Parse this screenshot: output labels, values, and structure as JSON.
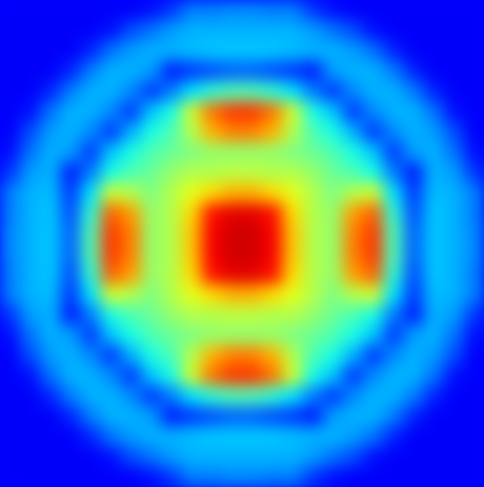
{
  "chart_data": {
    "type": "heatmap",
    "zlim": [
      0,
      100
    ],
    "tick_labels": false,
    "cells": [
      [
        12,
        12,
        12,
        12,
        12,
        12,
        12,
        14,
        18,
        25,
        25,
        26,
        26,
        25,
        25,
        18,
        14,
        12,
        12,
        12,
        12,
        12,
        12,
        12
      ],
      [
        12,
        12,
        12,
        12,
        12,
        14,
        20,
        24,
        28,
        30,
        30,
        30,
        30,
        30,
        30,
        28,
        24,
        20,
        14,
        12,
        12,
        12,
        12,
        12
      ],
      [
        12,
        12,
        12,
        12,
        16,
        24,
        28,
        30,
        30,
        31,
        32,
        32,
        32,
        32,
        31,
        30,
        30,
        28,
        24,
        16,
        12,
        12,
        12,
        12
      ],
      [
        12,
        12,
        12,
        16,
        25,
        30,
        30,
        28,
        15,
        18,
        20,
        22,
        22,
        20,
        18,
        15,
        28,
        30,
        30,
        25,
        16,
        12,
        12,
        12
      ],
      [
        12,
        12,
        16,
        25,
        30,
        30,
        26,
        18,
        25,
        35,
        42,
        45,
        45,
        42,
        35,
        25,
        18,
        26,
        30,
        30,
        25,
        16,
        12,
        12
      ],
      [
        12,
        14,
        24,
        30,
        30,
        26,
        18,
        32,
        40,
        58,
        76,
        82,
        82,
        76,
        58,
        40,
        32,
        18,
        26,
        30,
        30,
        24,
        14,
        12
      ],
      [
        12,
        20,
        28,
        30,
        26,
        18,
        30,
        40,
        45,
        55,
        70,
        75,
        75,
        70,
        55,
        45,
        40,
        30,
        18,
        26,
        30,
        28,
        20,
        12
      ],
      [
        14,
        24,
        30,
        28,
        18,
        32,
        40,
        45,
        48,
        50,
        52,
        52,
        52,
        52,
        50,
        48,
        45,
        40,
        32,
        18,
        28,
        30,
        24,
        14
      ],
      [
        18,
        28,
        30,
        15,
        25,
        40,
        45,
        48,
        52,
        55,
        55,
        56,
        56,
        55,
        55,
        52,
        48,
        45,
        40,
        25,
        15,
        30,
        28,
        18
      ],
      [
        25,
        30,
        31,
        18,
        35,
        58,
        55,
        50,
        55,
        60,
        66,
        70,
        70,
        66,
        60,
        55,
        50,
        55,
        58,
        35,
        18,
        31,
        30,
        25
      ],
      [
        25,
        30,
        32,
        20,
        42,
        78,
        72,
        52,
        55,
        66,
        86,
        90,
        90,
        86,
        66,
        55,
        52,
        72,
        78,
        42,
        20,
        32,
        30,
        25
      ],
      [
        26,
        30,
        32,
        22,
        45,
        82,
        75,
        52,
        55,
        68,
        88,
        92,
        92,
        88,
        68,
        55,
        52,
        75,
        82,
        45,
        22,
        32,
        30,
        26
      ],
      [
        26,
        30,
        32,
        22,
        45,
        82,
        75,
        52,
        55,
        68,
        88,
        92,
        92,
        88,
        68,
        55,
        52,
        75,
        82,
        45,
        22,
        32,
        30,
        26
      ],
      [
        25,
        30,
        32,
        20,
        42,
        78,
        72,
        52,
        55,
        66,
        86,
        90,
        90,
        86,
        66,
        55,
        52,
        72,
        78,
        42,
        20,
        32,
        30,
        25
      ],
      [
        25,
        30,
        31,
        18,
        35,
        58,
        55,
        50,
        55,
        60,
        66,
        70,
        70,
        66,
        60,
        55,
        50,
        55,
        58,
        35,
        18,
        31,
        30,
        25
      ],
      [
        18,
        28,
        30,
        15,
        25,
        40,
        45,
        48,
        52,
        55,
        55,
        56,
        56,
        55,
        55,
        52,
        48,
        45,
        40,
        25,
        15,
        30,
        28,
        18
      ],
      [
        14,
        24,
        30,
        28,
        18,
        32,
        40,
        45,
        48,
        50,
        52,
        52,
        52,
        52,
        50,
        48,
        45,
        40,
        32,
        18,
        28,
        30,
        24,
        14
      ],
      [
        12,
        20,
        28,
        30,
        26,
        18,
        30,
        40,
        45,
        55,
        70,
        75,
        75,
        70,
        55,
        45,
        40,
        30,
        18,
        26,
        30,
        28,
        20,
        12
      ],
      [
        12,
        14,
        24,
        30,
        30,
        26,
        18,
        32,
        40,
        58,
        76,
        82,
        82,
        76,
        58,
        40,
        32,
        18,
        26,
        30,
        30,
        24,
        14,
        12
      ],
      [
        12,
        12,
        16,
        25,
        30,
        30,
        26,
        18,
        25,
        35,
        42,
        45,
        45,
        42,
        35,
        25,
        18,
        26,
        30,
        30,
        25,
        16,
        12,
        12
      ],
      [
        12,
        12,
        12,
        16,
        25,
        30,
        30,
        28,
        15,
        18,
        20,
        22,
        22,
        20,
        18,
        15,
        28,
        30,
        30,
        25,
        16,
        12,
        12,
        12
      ],
      [
        12,
        12,
        12,
        12,
        16,
        24,
        28,
        30,
        30,
        31,
        32,
        32,
        32,
        32,
        31,
        30,
        30,
        28,
        24,
        16,
        12,
        12,
        12,
        12
      ],
      [
        12,
        12,
        12,
        12,
        12,
        14,
        20,
        24,
        28,
        30,
        30,
        30,
        30,
        30,
        30,
        28,
        24,
        20,
        14,
        12,
        12,
        12,
        12,
        12
      ],
      [
        12,
        12,
        12,
        12,
        12,
        12,
        12,
        14,
        18,
        25,
        25,
        26,
        26,
        25,
        25,
        18,
        14,
        12,
        12,
        12,
        12,
        12,
        12,
        12
      ]
    ]
  }
}
